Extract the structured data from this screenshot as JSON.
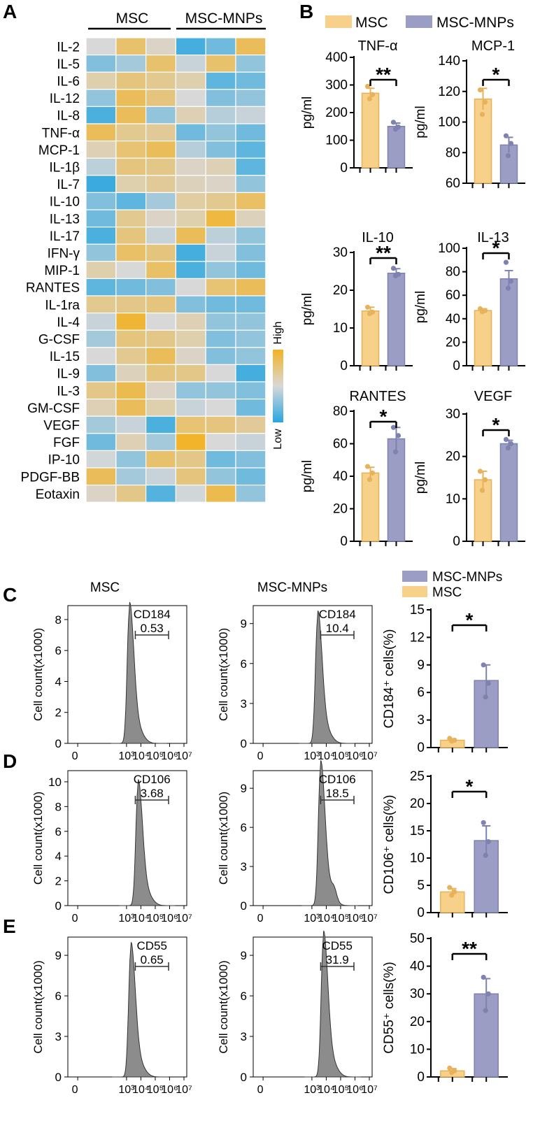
{
  "colors": {
    "msc": "#f7d08a",
    "msc_edge": "#e8b25a",
    "mnp": "#9b9dc4",
    "mnp_edge": "#7f82ae",
    "hist_fill": "#8c8c8c",
    "heat_low": "#29a6e0",
    "heat_mid": "#d8d8d8",
    "heat_high": "#f2b224"
  },
  "panels": {
    "a": "A",
    "b": "B",
    "c": "C",
    "d": "D",
    "e": "E"
  },
  "heatmap": {
    "groups": [
      "MSC",
      "MSC-MNPs"
    ],
    "scale_high": "High",
    "scale_low": "Low",
    "rows": [
      "IL-2",
      "IL-5",
      "IL-6",
      "IL-12",
      "IL-8",
      "TNF-α",
      "MCP-1",
      "IL-1β",
      "IL-7",
      "IL-10",
      "IL-13",
      "IL-17",
      "IFN-γ",
      "MIP-1",
      "RANTES",
      "IL-1ra",
      "IL-4",
      "G-CSF",
      "IL-15",
      "IL-9",
      "IL-3",
      "GM-CSF",
      "VEGF",
      "FGF",
      "IP-10",
      "PDGF-BB",
      "Eotaxin"
    ],
    "values": [
      [
        0.5,
        0.8,
        0.55,
        0.08,
        0.2,
        0.85
      ],
      [
        0.25,
        0.35,
        0.8,
        0.45,
        0.8,
        0.3
      ],
      [
        0.62,
        0.75,
        0.7,
        0.62,
        0.15,
        0.2
      ],
      [
        0.3,
        0.85,
        0.75,
        0.5,
        0.25,
        0.3
      ],
      [
        0.1,
        0.85,
        0.3,
        0.6,
        0.4,
        0.45
      ],
      [
        0.85,
        0.7,
        0.68,
        0.2,
        0.3,
        0.2
      ],
      [
        0.6,
        0.78,
        0.85,
        0.4,
        0.25,
        0.15
      ],
      [
        0.42,
        0.75,
        0.72,
        0.55,
        0.6,
        0.15
      ],
      [
        0.05,
        0.62,
        0.68,
        0.58,
        0.55,
        0.3
      ],
      [
        0.25,
        0.15,
        0.35,
        0.65,
        0.7,
        0.82
      ],
      [
        0.2,
        0.7,
        0.55,
        0.62,
        0.92,
        0.58
      ],
      [
        0.1,
        0.75,
        0.45,
        0.85,
        0.42,
        0.3
      ],
      [
        0.3,
        0.82,
        0.75,
        0.08,
        0.45,
        0.25
      ],
      [
        0.62,
        0.5,
        0.82,
        0.1,
        0.3,
        0.2
      ],
      [
        0.15,
        0.2,
        0.25,
        0.5,
        0.78,
        0.85
      ],
      [
        0.7,
        0.72,
        0.75,
        0.25,
        0.2,
        0.2
      ],
      [
        0.45,
        0.95,
        0.5,
        0.6,
        0.3,
        0.3
      ],
      [
        0.35,
        0.75,
        0.72,
        0.62,
        0.25,
        0.3
      ],
      [
        0.5,
        0.7,
        0.85,
        0.55,
        0.25,
        0.3
      ],
      [
        0.25,
        0.58,
        0.75,
        0.72,
        0.5,
        0.08
      ],
      [
        0.72,
        0.88,
        0.55,
        0.3,
        0.3,
        0.25
      ],
      [
        0.6,
        0.85,
        0.62,
        0.45,
        0.5,
        0.2
      ],
      [
        0.35,
        0.45,
        0.1,
        0.78,
        0.75,
        0.68
      ],
      [
        0.2,
        0.6,
        0.35,
        0.98,
        0.5,
        0.45
      ],
      [
        0.48,
        0.3,
        0.8,
        0.72,
        0.2,
        0.25
      ],
      [
        0.85,
        0.35,
        0.45,
        0.75,
        0.3,
        0.2
      ],
      [
        0.55,
        0.72,
        0.12,
        0.48,
        0.88,
        0.3
      ]
    ]
  },
  "legend_b": {
    "msc": "MSC",
    "mnp": "MSC-MNPs"
  },
  "legend_c": {
    "mnp": "MSC-MNPs",
    "msc": "MSC"
  },
  "flow_titles": {
    "msc": "MSC",
    "mnp": "MSC-MNPs"
  },
  "flow_xticks": [
    "0",
    "10³",
    "10⁴",
    "10⁵",
    "10⁶",
    "10⁷"
  ],
  "flow_ylabel": "Cell count(x1000)",
  "chart_data": [
    {
      "type": "bar",
      "id": "b1",
      "title": "TNF-α",
      "ylabel": "pg/ml",
      "categories": [
        "MSC",
        "MSC-MNPs"
      ],
      "values": [
        270,
        150
      ],
      "errors": [
        18,
        12
      ],
      "ylim": [
        0,
        400
      ],
      "yticks": [
        0,
        100,
        200,
        300,
        400
      ],
      "points": [
        [
          295,
          265,
          250
        ],
        [
          165,
          148,
          140
        ]
      ],
      "significance": "**"
    },
    {
      "type": "bar",
      "id": "b2",
      "title": "MCP-1",
      "ylabel": "pg/ml",
      "categories": [
        "MSC",
        "MSC-MNPs"
      ],
      "values": [
        115,
        85
      ],
      "errors": [
        7,
        5
      ],
      "ylim": [
        60,
        140
      ],
      "yticks": [
        60,
        80,
        100,
        120,
        140
      ],
      "points": [
        [
          121,
          113,
          105
        ],
        [
          91,
          86,
          78
        ]
      ],
      "significance": "*"
    },
    {
      "type": "bar",
      "id": "b3",
      "title": "IL-10",
      "ylabel": "pg/ml",
      "categories": [
        "MSC",
        "MSC-MNPs"
      ],
      "values": [
        14.5,
        24.5
      ],
      "errors": [
        1.0,
        1.2
      ],
      "ylim": [
        0,
        30
      ],
      "yticks": [
        0,
        10,
        20,
        30
      ],
      "points": [
        [
          15.5,
          14.2,
          13.8
        ],
        [
          25.8,
          24.2,
          23.8
        ]
      ],
      "significance": "**"
    },
    {
      "type": "bar",
      "id": "b4",
      "title": "IL-13",
      "ylabel": "pg/ml",
      "categories": [
        "MSC",
        "MSC-MNPs"
      ],
      "values": [
        47,
        74
      ],
      "errors": [
        1.5,
        7
      ],
      "ylim": [
        0,
        100
      ],
      "yticks": [
        0,
        20,
        40,
        60,
        80,
        100
      ],
      "points": [
        [
          48.5,
          47,
          46
        ],
        [
          88,
          72,
          66
        ]
      ],
      "significance": "*"
    },
    {
      "type": "bar",
      "id": "b5",
      "title": "RANTES",
      "ylabel": "pg/ml",
      "categories": [
        "MSC",
        "MSC-MNPs"
      ],
      "values": [
        42,
        63
      ],
      "errors": [
        3.5,
        7
      ],
      "ylim": [
        0,
        80
      ],
      "yticks": [
        0,
        20,
        40,
        60,
        80
      ],
      "points": [
        [
          46,
          42,
          38
        ],
        [
          70,
          65,
          55
        ]
      ],
      "significance": "*"
    },
    {
      "type": "bar",
      "id": "b6",
      "title": "VEGF",
      "ylabel": "pg/ml",
      "categories": [
        "MSC",
        "MSC-MNPs"
      ],
      "values": [
        14.5,
        23
      ],
      "errors": [
        2,
        0.8
      ],
      "ylim": [
        0,
        30
      ],
      "yticks": [
        0,
        10,
        20,
        30
      ],
      "points": [
        [
          16.5,
          14.5,
          12
        ],
        [
          24,
          23,
          22
        ]
      ],
      "significance": "*"
    },
    {
      "type": "bar",
      "id": "c",
      "title": "",
      "ylabel": "CD184⁺ cells(%)",
      "categories": [
        "MSC",
        "MSC-MNPs"
      ],
      "values": [
        0.8,
        7.3
      ],
      "errors": [
        0.15,
        1.7
      ],
      "ylim": [
        0,
        15
      ],
      "yticks": [
        0,
        3,
        6,
        9,
        12,
        15
      ],
      "points": [
        [
          1.0,
          0.8,
          0.7
        ],
        [
          9.0,
          7.0,
          5.5
        ]
      ],
      "significance": "*"
    },
    {
      "type": "bar",
      "id": "d",
      "title": "",
      "ylabel": "CD106⁺ cells(%)",
      "categories": [
        "MSC",
        "MSC-MNPs"
      ],
      "values": [
        3.8,
        13.2
      ],
      "errors": [
        0.6,
        2.7
      ],
      "ylim": [
        0,
        25
      ],
      "yticks": [
        0,
        5,
        10,
        15,
        20,
        25
      ],
      "points": [
        [
          4.6,
          3.8,
          3.2
        ],
        [
          16.5,
          13,
          10.5
        ]
      ],
      "significance": "*"
    },
    {
      "type": "bar",
      "id": "e",
      "title": "",
      "ylabel": "CD55⁺ cells(%)",
      "categories": [
        "MSC",
        "MSC-MNPs"
      ],
      "values": [
        2.2,
        30
      ],
      "errors": [
        0.8,
        5.5
      ],
      "ylim": [
        0,
        50
      ],
      "yticks": [
        0,
        10,
        20,
        30,
        40,
        50
      ],
      "points": [
        [
          3.2,
          2.2,
          1.6
        ],
        [
          36,
          30,
          24
        ]
      ],
      "significance": "**"
    },
    {
      "type": "histogram",
      "id": "f_c_msc",
      "marker": "CD184",
      "percent": "0.53",
      "yticks": [
        0,
        2,
        4,
        6,
        8
      ],
      "peak": 8.6,
      "peak_log": 3.2,
      "shoulder": 0
    },
    {
      "type": "histogram",
      "id": "f_c_mnp",
      "marker": "CD184",
      "percent": "10.4",
      "yticks": [
        0,
        3,
        6,
        9
      ],
      "peak": 9.4,
      "peak_log": 3.4,
      "shoulder": 0
    },
    {
      "type": "histogram",
      "id": "f_d_msc",
      "marker": "CD106",
      "percent": "3.68",
      "yticks": [
        0,
        2,
        4,
        6,
        8,
        10
      ],
      "peak": 9.6,
      "peak_log": 3.8,
      "shoulder": 0
    },
    {
      "type": "histogram",
      "id": "f_d_mnp",
      "marker": "CD106",
      "percent": "18.5",
      "yticks": [
        0,
        3,
        6,
        9
      ],
      "peak": 10.5,
      "peak_log": 3.6,
      "shoulder": 1
    },
    {
      "type": "histogram",
      "id": "f_e_msc",
      "marker": "CD55",
      "percent": "0.65",
      "yticks": [
        0,
        3,
        6,
        9
      ],
      "peak": 9.4,
      "peak_log": 3.3,
      "shoulder": 0
    },
    {
      "type": "histogram",
      "id": "f_e_mnp",
      "marker": "CD55",
      "percent": "31.9",
      "yticks": [
        0,
        3,
        6,
        9
      ],
      "peak": 10.2,
      "peak_log": 3.8,
      "shoulder": 0
    }
  ]
}
